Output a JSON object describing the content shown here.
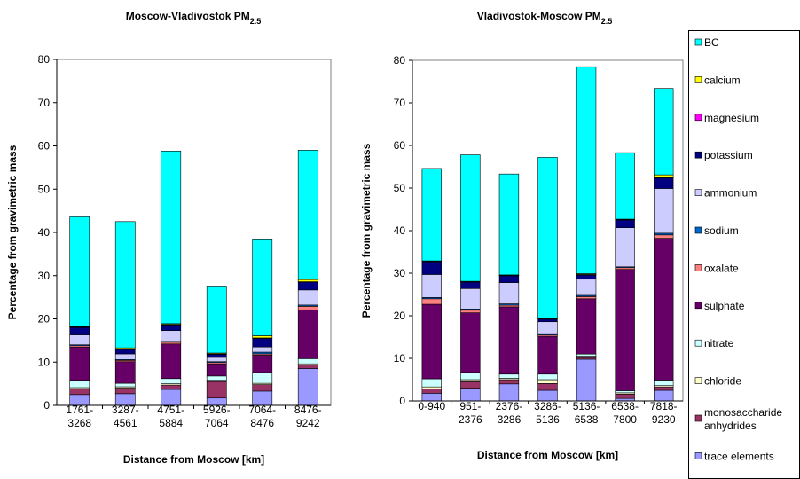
{
  "chart_data": [
    {
      "type": "bar",
      "stacked": true,
      "title": "Moscow-Vladivostok PM",
      "title_subscript": "2.5",
      "x_label": "Distance from Moscow [km]",
      "y_label": "Percentage from gravimetric mass",
      "categories": [
        "1761-3268",
        "3287-4561",
        "4751-5884",
        "5926-7064",
        "7064-8476",
        "8476-9242"
      ],
      "ylim": [
        0,
        80
      ],
      "yticks": [
        0,
        10,
        20,
        30,
        40,
        50,
        60,
        70,
        80
      ],
      "legend": "right",
      "series": [
        {
          "name": "trace elements",
          "color": "#9999ff",
          "values": [
            2.5,
            2.7,
            3.7,
            1.7,
            3.3,
            8.5
          ]
        },
        {
          "name": "monosaccharide anhydrides",
          "color": "#993366",
          "values": [
            1.3,
            1.3,
            1.0,
            3.8,
            1.5,
            0.8
          ]
        },
        {
          "name": "chloride",
          "color": "#ffffcc",
          "values": [
            0.3,
            0.3,
            0.3,
            0.3,
            0.3,
            0.3
          ]
        },
        {
          "name": "nitrate",
          "color": "#ccffff",
          "values": [
            1.7,
            0.8,
            1.2,
            1.0,
            2.5,
            1.2
          ]
        },
        {
          "name": "sulphate",
          "color": "#660066",
          "values": [
            7.7,
            5.0,
            8.0,
            2.8,
            4.0,
            11.3
          ]
        },
        {
          "name": "oxalate",
          "color": "#ff8080",
          "values": [
            0.3,
            0.3,
            0.4,
            0.3,
            0.3,
            0.8
          ]
        },
        {
          "name": "sodium",
          "color": "#0066cc",
          "values": [
            0.2,
            0.2,
            0.2,
            0.2,
            0.4,
            0.3
          ]
        },
        {
          "name": "ammonium",
          "color": "#ccccff",
          "values": [
            2.3,
            1.3,
            2.5,
            1.0,
            1.2,
            3.5
          ]
        },
        {
          "name": "potassium",
          "color": "#000080",
          "values": [
            1.7,
            1.0,
            1.3,
            0.7,
            2.0,
            1.8
          ]
        },
        {
          "name": "magnesium",
          "color": "#ff00ff",
          "values": [
            0.1,
            0.1,
            0.1,
            0.1,
            0.1,
            0.1
          ]
        },
        {
          "name": "calcium",
          "color": "#ffff00",
          "values": [
            0.1,
            0.3,
            0.2,
            0.2,
            0.5,
            0.5
          ]
        },
        {
          "name": "BC",
          "color": "#00ffff",
          "values": [
            25.4,
            29.2,
            39.9,
            15.5,
            22.4,
            29.9
          ]
        }
      ]
    },
    {
      "type": "bar",
      "stacked": true,
      "title": "Vladivostok-Moscow PM",
      "title_subscript": "2.5",
      "x_label": "Distance from Moscow [km]",
      "y_label": "Percentage from gravimetric mass",
      "categories": [
        "0-940",
        "951-2376",
        "2376-3286",
        "3286-5136",
        "5136-6538",
        "6538-7800",
        "7818-9230"
      ],
      "ylim": [
        0,
        80
      ],
      "yticks": [
        0,
        10,
        20,
        30,
        40,
        50,
        60,
        70,
        80
      ],
      "series": [
        {
          "color": "#9999ff",
          "values": [
            1.8,
            3.0,
            4.0,
            2.5,
            9.8,
            0.6,
            2.5
          ]
        },
        {
          "color": "#993366",
          "values": [
            1.0,
            1.5,
            1.0,
            1.6,
            0.4,
            1.0,
            0.8
          ]
        },
        {
          "color": "#ffffcc",
          "values": [
            0.5,
            0.5,
            0.3,
            0.9,
            0.3,
            0.3,
            0.3
          ]
        },
        {
          "color": "#ccffff",
          "values": [
            1.9,
            1.7,
            1.0,
            1.3,
            0.5,
            0.5,
            1.3
          ]
        },
        {
          "color": "#660066",
          "values": [
            17.5,
            14.0,
            15.8,
            8.9,
            13.0,
            28.5,
            33.3
          ]
        },
        {
          "color": "#ff8080",
          "values": [
            1.3,
            0.6,
            0.4,
            0.3,
            0.5,
            0.4,
            0.8
          ]
        },
        {
          "color": "#0066cc",
          "values": [
            0.3,
            0.3,
            0.3,
            0.3,
            0.3,
            0.2,
            0.4
          ]
        },
        {
          "color": "#ccccff",
          "values": [
            5.4,
            4.8,
            5.0,
            2.8,
            3.8,
            9.2,
            10.5
          ]
        },
        {
          "color": "#000080",
          "values": [
            3.0,
            1.5,
            1.6,
            0.6,
            1.0,
            1.8,
            2.5
          ]
        },
        {
          "color": "#ff00ff",
          "values": [
            0.1,
            0.1,
            0.1,
            0.1,
            0.1,
            0.1,
            0.1
          ]
        },
        {
          "color": "#ffff00",
          "values": [
            0.1,
            0.1,
            0.1,
            0.2,
            0.2,
            0.1,
            0.6
          ]
        },
        {
          "color": "#00ffff",
          "values": [
            21.7,
            29.7,
            23.7,
            37.7,
            48.6,
            15.6,
            20.3
          ]
        }
      ]
    }
  ]
}
